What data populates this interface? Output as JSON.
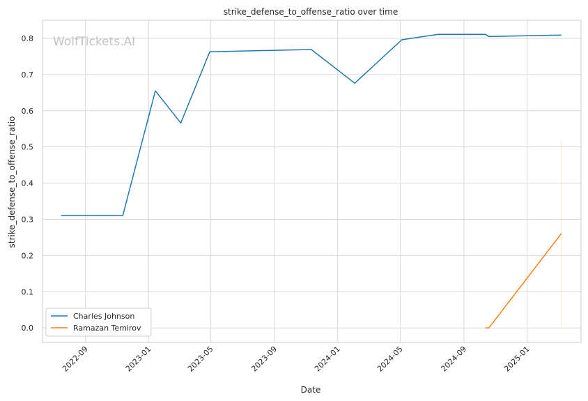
{
  "chart_data": {
    "type": "line",
    "title": "strike_defense_to_offense_ratio over time",
    "xlabel": "Date",
    "ylabel": "strike_defense_to_offense_ratio",
    "watermark": "WolfTickets.AI",
    "xlim": [
      "2022-06-10",
      "2025-04-15"
    ],
    "ylim": [
      -0.04,
      0.85
    ],
    "x_ticks": [
      "2022-09-01",
      "2023-01-01",
      "2023-05-01",
      "2023-09-01",
      "2024-01-01",
      "2024-05-01",
      "2024-09-01",
      "2025-01-01"
    ],
    "x_tick_labels": [
      "2022-09",
      "2023-01",
      "2023-05",
      "2023-09",
      "2024-01",
      "2024-05",
      "2024-09",
      "2025-01"
    ],
    "y_ticks": [
      0.0,
      0.1,
      0.2,
      0.3,
      0.4,
      0.5,
      0.6,
      0.7,
      0.8
    ],
    "y_tick_labels": [
      "0.0",
      "0.1",
      "0.2",
      "0.3",
      "0.4",
      "0.5",
      "0.6",
      "0.7",
      "0.8"
    ],
    "grid": true,
    "legend_position": "lower-left",
    "series": [
      {
        "name": "Charles Johnson",
        "color": "#1f77b4",
        "points": [
          {
            "x": "2022-07-16",
            "y": 0.31
          },
          {
            "x": "2022-11-12",
            "y": 0.31
          },
          {
            "x": "2023-01-14",
            "y": 0.655
          },
          {
            "x": "2023-03-04",
            "y": 0.566
          },
          {
            "x": "2023-04-29",
            "y": 0.763
          },
          {
            "x": "2023-11-11",
            "y": 0.769
          },
          {
            "x": "2024-02-03",
            "y": 0.676
          },
          {
            "x": "2024-05-04",
            "y": 0.796
          },
          {
            "x": "2024-07-13",
            "y": 0.811
          },
          {
            "x": "2024-10-12",
            "y": 0.811
          },
          {
            "x": "2024-10-19",
            "y": 0.805
          },
          {
            "x": "2025-03-08",
            "y": 0.809
          }
        ]
      },
      {
        "name": "Ramazan Temirov",
        "color": "#ff7f0e",
        "points": [
          {
            "x": "2024-10-12",
            "y": 0.0
          },
          {
            "x": "2024-10-19",
            "y": 0.0
          },
          {
            "x": "2025-03-08",
            "y": 0.261
          }
        ],
        "band": {
          "x": "2025-03-08",
          "low": 0.0,
          "high": 0.522
        }
      }
    ]
  }
}
